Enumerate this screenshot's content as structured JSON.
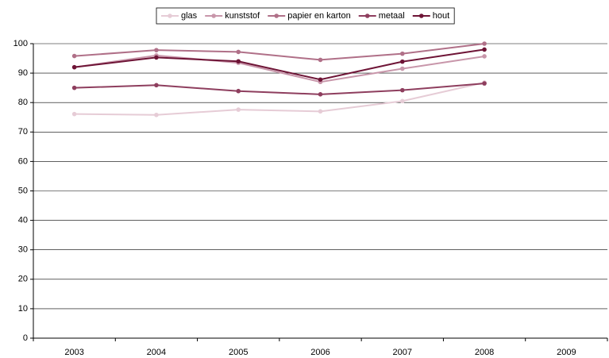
{
  "chart_data": {
    "type": "line",
    "categories": [
      "2003",
      "2004",
      "2005",
      "2006",
      "2007",
      "2008",
      "2009"
    ],
    "series": [
      {
        "name": "glas",
        "color": "#e6ccd6",
        "values": [
          76.1,
          75.8,
          77.6,
          77.0,
          80.5,
          86.8,
          null
        ]
      },
      {
        "name": "kunststof",
        "color": "#c896aa",
        "values": [
          92.0,
          96.0,
          93.5,
          87.0,
          91.5,
          95.7,
          null
        ]
      },
      {
        "name": "papier en karton",
        "color": "#b07088",
        "values": [
          95.8,
          97.8,
          97.2,
          94.5,
          96.6,
          100.0,
          null
        ]
      },
      {
        "name": "metaal",
        "color": "#8e3e5e",
        "values": [
          85.0,
          85.9,
          83.9,
          82.8,
          84.2,
          86.5,
          null
        ]
      },
      {
        "name": "hout",
        "color": "#6e1436",
        "values": [
          92.0,
          95.3,
          94.0,
          87.8,
          93.9,
          98.0,
          null
        ]
      }
    ],
    "ylim": [
      0,
      100
    ],
    "yticks": [
      0,
      10,
      20,
      30,
      40,
      50,
      60,
      70,
      80,
      90,
      100
    ],
    "grid": true,
    "legend": "top"
  }
}
